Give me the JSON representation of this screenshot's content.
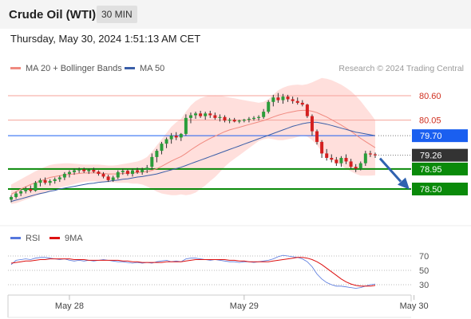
{
  "header": {
    "title": "Crude Oil (WTI)",
    "timeframe": "30 MIN"
  },
  "timestamp": "Thursday, May 30, 2024 1:51:13 AM CET",
  "legend": {
    "ma20": {
      "label": "MA 20 + Bollinger Bands",
      "color": "#f08a80"
    },
    "ma50": {
      "label": "MA 50",
      "color": "#3a5ea8"
    },
    "credit": "Research © 2024 Trading Central"
  },
  "rsi_legend": {
    "rsi": {
      "label": "RSI",
      "color": "#5577dd"
    },
    "ma9": {
      "label": "9MA",
      "color": "#dd1111"
    }
  },
  "levels": [
    {
      "label": "80.60",
      "value": 80.6,
      "kind": "line",
      "color": "#f4a29a"
    },
    {
      "label": "80.05",
      "value": 80.05,
      "kind": "line",
      "color": "#f4a29a"
    },
    {
      "label": "79.70",
      "value": 79.7,
      "kind": "box",
      "color": "#1a5ff0"
    },
    {
      "label": "79.26",
      "value": 79.26,
      "kind": "box",
      "color": "#333333"
    },
    {
      "label": "78.95",
      "value": 78.95,
      "kind": "box",
      "color": "#0a8a0a"
    },
    {
      "label": "78.50",
      "value": 78.5,
      "kind": "box",
      "color": "#0a8a0a"
    }
  ],
  "rsi_levels": [
    {
      "label": "70",
      "value": 70
    },
    {
      "label": "50",
      "value": 50
    },
    {
      "label": "30",
      "value": 30
    }
  ],
  "x_labels": [
    {
      "label": "May 28",
      "index": 12
    },
    {
      "label": "May 29",
      "index": 48
    },
    {
      "label": "May 30",
      "index": 83
    }
  ],
  "colors": {
    "up": "#2a9d3a",
    "down": "#d42020",
    "arrow": "#2f62b0",
    "band": "#ffd9d6"
  },
  "chart_data": {
    "type": "candlestick",
    "price_range": [
      78.2,
      80.85
    ],
    "rsi_range": [
      20,
      80
    ],
    "candles": [
      [
        78.26,
        78.36,
        78.2,
        78.32
      ],
      [
        78.32,
        78.44,
        78.28,
        78.4
      ],
      [
        78.4,
        78.48,
        78.34,
        78.45
      ],
      [
        78.45,
        78.55,
        78.4,
        78.5
      ],
      [
        78.5,
        78.58,
        78.42,
        78.46
      ],
      [
        78.46,
        78.68,
        78.44,
        78.64
      ],
      [
        78.64,
        78.74,
        78.56,
        78.7
      ],
      [
        78.7,
        78.76,
        78.6,
        78.64
      ],
      [
        78.64,
        78.72,
        78.58,
        78.68
      ],
      [
        78.68,
        78.76,
        78.62,
        78.72
      ],
      [
        78.72,
        78.8,
        78.66,
        78.76
      ],
      [
        78.76,
        78.88,
        78.7,
        78.84
      ],
      [
        78.84,
        78.92,
        78.76,
        78.88
      ],
      [
        78.88,
        78.96,
        78.82,
        78.92
      ],
      [
        78.92,
        78.98,
        78.86,
        78.94
      ],
      [
        78.94,
        78.98,
        78.86,
        78.9
      ],
      [
        78.9,
        78.96,
        78.84,
        78.93
      ],
      [
        78.93,
        78.98,
        78.86,
        78.89
      ],
      [
        78.89,
        78.92,
        78.8,
        78.84
      ],
      [
        78.84,
        78.88,
        78.74,
        78.78
      ],
      [
        78.78,
        78.82,
        78.66,
        78.7
      ],
      [
        78.7,
        78.8,
        78.66,
        78.76
      ],
      [
        78.76,
        78.92,
        78.72,
        78.88
      ],
      [
        78.88,
        78.96,
        78.82,
        78.91
      ],
      [
        78.91,
        78.94,
        78.8,
        78.84
      ],
      [
        78.84,
        78.96,
        78.78,
        78.92
      ],
      [
        78.92,
        78.98,
        78.84,
        78.88
      ],
      [
        78.88,
        78.98,
        78.82,
        78.93
      ],
      [
        78.93,
        79.04,
        78.86,
        78.98
      ],
      [
        79.0,
        79.3,
        78.94,
        79.22
      ],
      [
        79.22,
        79.4,
        79.1,
        79.36
      ],
      [
        79.36,
        79.56,
        79.28,
        79.52
      ],
      [
        79.52,
        79.66,
        79.42,
        79.62
      ],
      [
        79.62,
        79.76,
        79.52,
        79.7
      ],
      [
        79.7,
        79.78,
        79.6,
        79.66
      ],
      [
        79.66,
        79.76,
        79.58,
        79.74
      ],
      [
        79.74,
        80.18,
        79.7,
        80.1
      ],
      [
        80.1,
        80.22,
        79.98,
        80.16
      ],
      [
        80.16,
        80.24,
        80.08,
        80.2
      ],
      [
        80.2,
        80.26,
        80.1,
        80.14
      ],
      [
        80.14,
        80.24,
        80.06,
        80.2
      ],
      [
        80.2,
        80.26,
        80.1,
        80.16
      ],
      [
        80.16,
        80.22,
        80.06,
        80.1
      ],
      [
        80.1,
        80.18,
        80.02,
        80.12
      ],
      [
        80.12,
        80.16,
        80.0,
        80.04
      ],
      [
        80.04,
        80.1,
        79.98,
        80.06
      ],
      [
        80.06,
        80.1,
        80.0,
        80.02
      ],
      [
        80.02,
        80.06,
        79.98,
        80.04
      ],
      [
        80.04,
        80.08,
        80.0,
        80.06
      ],
      [
        80.06,
        80.12,
        80.0,
        80.08
      ],
      [
        80.08,
        80.14,
        80.04,
        80.1
      ],
      [
        80.1,
        80.16,
        80.04,
        80.12
      ],
      [
        80.12,
        80.3,
        80.08,
        80.24
      ],
      [
        80.24,
        80.5,
        80.2,
        80.46
      ],
      [
        80.46,
        80.62,
        80.36,
        80.56
      ],
      [
        80.56,
        80.66,
        80.44,
        80.5
      ],
      [
        80.5,
        80.64,
        80.42,
        80.58
      ],
      [
        80.58,
        80.62,
        80.46,
        80.52
      ],
      [
        80.52,
        80.58,
        80.42,
        80.48
      ],
      [
        80.48,
        80.56,
        80.4,
        80.44
      ],
      [
        80.44,
        80.5,
        80.36,
        80.4
      ],
      [
        80.4,
        80.42,
        80.1,
        80.14
      ],
      [
        80.14,
        80.18,
        79.7,
        79.8
      ],
      [
        79.8,
        79.84,
        79.5,
        79.56
      ],
      [
        79.56,
        79.6,
        79.2,
        79.3
      ],
      [
        79.3,
        79.4,
        79.14,
        79.2
      ],
      [
        79.2,
        79.28,
        79.1,
        79.16
      ],
      [
        79.16,
        79.22,
        79.02,
        79.08
      ],
      [
        79.08,
        79.24,
        79.0,
        79.2
      ],
      [
        79.2,
        79.28,
        79.06,
        79.12
      ],
      [
        79.12,
        79.18,
        78.96,
        79.0
      ],
      [
        79.0,
        79.06,
        78.88,
        78.96
      ],
      [
        78.96,
        79.12,
        78.92,
        79.08
      ],
      [
        79.08,
        79.36,
        79.02,
        79.3
      ],
      [
        79.3,
        79.36,
        79.22,
        79.28
      ],
      [
        79.28,
        79.32,
        79.2,
        79.26
      ]
    ],
    "ma20": [
      78.38,
      78.44,
      78.5,
      78.55,
      78.6,
      78.64,
      78.68,
      78.72,
      78.76,
      78.78,
      78.8,
      78.82,
      78.83,
      78.84,
      78.85,
      78.86,
      78.86,
      78.86,
      78.86,
      78.85,
      78.84,
      78.84,
      78.84,
      78.85,
      78.86,
      78.86,
      78.87,
      78.88,
      78.89,
      78.92,
      78.96,
      79.01,
      79.07,
      79.13,
      79.18,
      79.23,
      79.3,
      79.38,
      79.45,
      79.52,
      79.58,
      79.64,
      79.69,
      79.74,
      79.79,
      79.83,
      79.86,
      79.89,
      79.92,
      79.95,
      79.98,
      80.01,
      80.04,
      80.08,
      80.12,
      80.16,
      80.19,
      80.22,
      80.24,
      80.26,
      80.27,
      80.27,
      80.25,
      80.22,
      80.17,
      80.12,
      80.06,
      80.0,
      79.94,
      79.87,
      79.8,
      79.72,
      79.64,
      79.57,
      79.5,
      79.43
    ],
    "bb_upper": [
      78.6,
      78.66,
      78.72,
      78.78,
      78.84,
      78.9,
      78.95,
      79.0,
      79.04,
      79.06,
      79.07,
      79.08,
      79.08,
      79.07,
      79.06,
      79.05,
      79.05,
      79.05,
      79.05,
      79.04,
      79.03,
      79.03,
      79.04,
      79.06,
      79.08,
      79.1,
      79.12,
      79.16,
      79.22,
      79.34,
      79.48,
      79.62,
      79.76,
      79.9,
      80.0,
      80.08,
      80.24,
      80.38,
      80.48,
      80.54,
      80.58,
      80.6,
      80.61,
      80.6,
      80.58,
      80.56,
      80.54,
      80.52,
      80.5,
      80.48,
      80.46,
      80.44,
      80.46,
      80.52,
      80.62,
      80.72,
      80.78,
      80.82,
      80.84,
      80.85,
      80.84,
      80.86,
      80.9,
      80.95,
      81.0,
      80.98,
      80.95,
      80.9,
      80.85,
      80.78,
      80.7,
      80.6,
      80.48,
      80.34,
      80.2,
      80.05
    ],
    "bb_lower": [
      78.16,
      78.18,
      78.22,
      78.26,
      78.3,
      78.34,
      78.38,
      78.42,
      78.46,
      78.5,
      78.53,
      78.56,
      78.58,
      78.61,
      78.64,
      78.66,
      78.67,
      78.67,
      78.67,
      78.66,
      78.65,
      78.65,
      78.64,
      78.64,
      78.64,
      78.62,
      78.62,
      78.6,
      78.56,
      78.5,
      78.44,
      78.4,
      78.38,
      78.36,
      78.36,
      78.38,
      78.36,
      78.38,
      78.42,
      78.5,
      78.58,
      78.68,
      78.77,
      78.88,
      79.0,
      79.1,
      79.18,
      79.26,
      79.34,
      79.42,
      79.5,
      79.58,
      79.62,
      79.64,
      79.62,
      79.6,
      79.6,
      79.62,
      79.64,
      79.67,
      79.7,
      79.68,
      79.6,
      79.49,
      79.34,
      79.26,
      79.17,
      79.1,
      79.03,
      78.96,
      78.9,
      78.84,
      78.8,
      78.8,
      78.8,
      78.81
    ],
    "ma50": [
      78.22,
      78.25,
      78.28,
      78.31,
      78.34,
      78.37,
      78.4,
      78.42,
      78.45,
      78.47,
      78.5,
      78.52,
      78.54,
      78.56,
      78.58,
      78.6,
      78.62,
      78.63,
      78.65,
      78.66,
      78.67,
      78.69,
      78.7,
      78.72,
      78.73,
      78.75,
      78.77,
      78.78,
      78.8,
      78.82,
      78.84,
      78.87,
      78.9,
      78.93,
      78.96,
      78.99,
      79.03,
      79.07,
      79.11,
      79.15,
      79.19,
      79.23,
      79.27,
      79.31,
      79.35,
      79.39,
      79.43,
      79.47,
      79.51,
      79.55,
      79.59,
      79.63,
      79.67,
      79.71,
      79.75,
      79.79,
      79.83,
      79.87,
      79.91,
      79.94,
      79.97,
      79.99,
      80.0,
      80.0,
      79.98,
      79.96,
      79.93,
      79.9,
      79.87,
      79.84,
      79.81,
      79.78,
      79.76,
      79.74,
      79.72,
      79.7
    ],
    "rsi": [
      58,
      64,
      65,
      66,
      65,
      67,
      68,
      68,
      67,
      66,
      65,
      66,
      64,
      63,
      64,
      63,
      64,
      63,
      64,
      65,
      64,
      63,
      62,
      62,
      61,
      60,
      61,
      60,
      61,
      60,
      62,
      63,
      64,
      62,
      63,
      62,
      66,
      67,
      67,
      66,
      65,
      64,
      65,
      64,
      63,
      62,
      62,
      61,
      62,
      62,
      61,
      62,
      63,
      64,
      66,
      69,
      71,
      70,
      69,
      68,
      66,
      62,
      55,
      45,
      38,
      33,
      30,
      28,
      28,
      27,
      26,
      25,
      26,
      28,
      30,
      31
    ],
    "rsi_ma9": [
      60,
      61,
      62,
      63,
      63,
      64,
      65,
      65,
      66,
      66,
      66,
      66,
      66,
      65,
      65,
      65,
      64,
      64,
      64,
      64,
      64,
      64,
      64,
      63,
      63,
      62,
      62,
      61,
      61,
      61,
      61,
      61,
      62,
      62,
      62,
      62,
      63,
      64,
      65,
      65,
      65,
      65,
      65,
      65,
      65,
      64,
      64,
      63,
      63,
      62,
      62,
      62,
      62,
      62,
      63,
      64,
      65,
      66,
      67,
      68,
      68,
      67,
      65,
      62,
      58,
      53,
      48,
      43,
      38,
      34,
      31,
      29,
      28,
      28,
      28,
      29
    ]
  }
}
